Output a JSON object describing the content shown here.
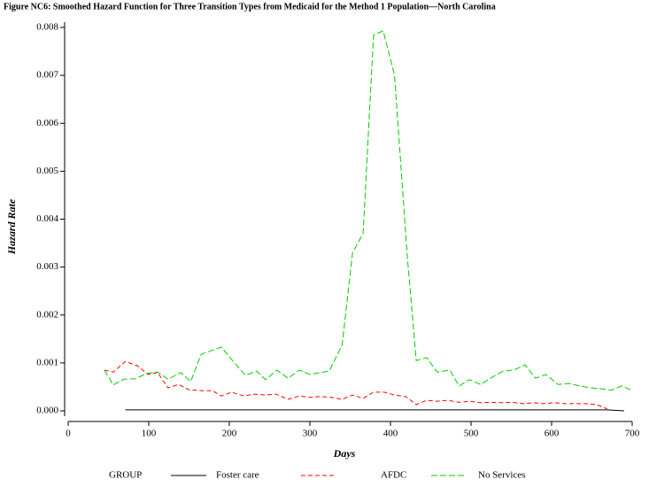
{
  "chart_data": {
    "type": "line",
    "title": "Figure NC6:  Smoothed Hazard Function for Three Transition Types from Medicaid for the Method 1 Population—North Carolina",
    "x_label": "Days",
    "y_label": "Hazard Rate",
    "legend_title": "GROUP",
    "xlim": [
      0,
      700
    ],
    "ylim": [
      0,
      0.008
    ],
    "xticks": [
      0,
      100,
      200,
      300,
      400,
      500,
      600,
      700
    ],
    "yticks": [
      {
        "value": 0,
        "label": "0.000"
      },
      {
        "value": 0.001,
        "label": "0.001"
      },
      {
        "value": 0.002,
        "label": "0.002"
      },
      {
        "value": 0.003,
        "label": "0.003"
      },
      {
        "value": 0.004,
        "label": "0.004"
      },
      {
        "value": 0.005,
        "label": "0.005"
      },
      {
        "value": 0.006,
        "label": "0.006"
      },
      {
        "value": 0.007,
        "label": "0.007"
      },
      {
        "value": 0.008,
        "label": "0.008"
      }
    ],
    "series": [
      {
        "name": "Foster care",
        "color": "#000000",
        "dash": "none",
        "x": [
          71,
          669,
          690
        ],
        "values": [
          2e-05,
          2e-05,
          0.0
        ]
      },
      {
        "name": "AFDC",
        "color": "#ff0000",
        "dash": "5,3",
        "x": [
          45,
          56,
          71,
          86,
          99,
          111,
          124,
          137,
          150,
          168,
          179,
          190,
          203,
          218,
          231,
          245,
          258,
          273,
          287,
          300,
          313,
          327,
          340,
          353,
          366,
          379,
          392,
          405,
          419,
          432,
          445,
          458,
          471,
          485,
          498,
          511,
          524,
          537,
          551,
          564,
          577,
          590,
          603,
          616,
          630,
          643,
          656,
          669
        ],
        "values": [
          0.00085,
          0.00081,
          0.00103,
          0.00094,
          0.00076,
          0.0008,
          0.00048,
          0.00055,
          0.00044,
          0.00042,
          0.00042,
          0.00031,
          0.00039,
          0.00031,
          0.00035,
          0.00033,
          0.00035,
          0.00024,
          0.00031,
          0.00028,
          0.0003,
          0.00028,
          0.00024,
          0.00033,
          0.00026,
          0.00039,
          0.00039,
          0.00033,
          0.0003,
          0.00013,
          0.00022,
          0.0002,
          0.00022,
          0.00018,
          0.0002,
          0.00017,
          0.00018,
          0.00017,
          0.00018,
          0.00015,
          0.00017,
          0.00015,
          0.00017,
          0.00015,
          0.00015,
          0.00015,
          0.00013,
          4e-05
        ]
      },
      {
        "name": "No Services",
        "color": "#00cc00",
        "dash": "7,3",
        "x": [
          45,
          56,
          69,
          84,
          97,
          111,
          124,
          140,
          152,
          165,
          190,
          205,
          220,
          234,
          245,
          259,
          273,
          287,
          300,
          324,
          340,
          353,
          366,
          379,
          391,
          405,
          421,
          432,
          445,
          458,
          474,
          485,
          498,
          512,
          526,
          540,
          553,
          567,
          580,
          593,
          608,
          621,
          635,
          648,
          663,
          674,
          687,
          698
        ],
        "values": [
          0.00085,
          0.00054,
          0.00066,
          0.00067,
          0.00078,
          0.00081,
          0.00066,
          0.0008,
          0.00061,
          0.00118,
          0.00133,
          0.00103,
          0.00074,
          0.00083,
          0.00065,
          0.00085,
          0.00068,
          0.00085,
          0.00076,
          0.00083,
          0.00137,
          0.0033,
          0.0037,
          0.00784,
          0.00793,
          0.007,
          0.0032,
          0.00105,
          0.00111,
          0.00081,
          0.00085,
          0.00052,
          0.00065,
          0.00055,
          0.0007,
          0.00083,
          0.00085,
          0.00096,
          0.00068,
          0.00076,
          0.00055,
          0.00057,
          0.00052,
          0.00048,
          0.00046,
          0.00043,
          0.00052,
          0.00044
        ]
      }
    ]
  }
}
